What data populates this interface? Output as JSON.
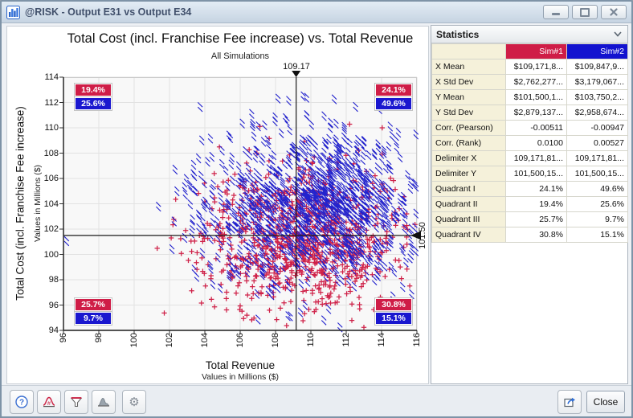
{
  "window": {
    "title": "@RISK - Output E31 vs Output E34"
  },
  "chart_data": {
    "type": "scatter",
    "title": "Total Cost (incl. Franchise Fee increase) vs. Total Revenue",
    "subtitle": "All Simulations",
    "xlabel": "Total Revenue",
    "xlabel_sub": "Values in Millions ($)",
    "ylabel": "Total Cost (incl. Franchise Fee increase)",
    "ylabel_sub": "Values in Millions ($)",
    "xlim": [
      96,
      116
    ],
    "ylim": [
      94,
      114
    ],
    "x_ticks": [
      96,
      98,
      100,
      102,
      104,
      106,
      108,
      110,
      112,
      114,
      116
    ],
    "y_ticks": [
      94,
      96,
      98,
      100,
      102,
      104,
      106,
      108,
      110,
      112,
      114
    ],
    "grid": true,
    "legend_position": "none",
    "delimiter_x": 109.17,
    "delimiter_y": 101.5,
    "delimiter_x_label": "109.17",
    "delimiter_y_label": "101.50",
    "series": [
      {
        "name": "Sim#1",
        "marker": "plus",
        "color": "#cf2148",
        "count": 1000,
        "x_mean": 109.17,
        "x_std": 2.76,
        "y_mean": 101.5,
        "y_std": 2.88,
        "quadrants": {
          "I": 24.1,
          "II": 19.4,
          "III": 25.7,
          "IV": 30.8
        },
        "seed": 7
      },
      {
        "name": "Sim#2",
        "marker": "cross",
        "color": "#2323cd",
        "count": 1000,
        "x_mean": 109.85,
        "x_std": 3.18,
        "y_mean": 103.75,
        "y_std": 2.96,
        "quadrants": {
          "I": 49.6,
          "II": 25.6,
          "III": 9.7,
          "IV": 15.1
        },
        "seed": 13
      }
    ],
    "quadrant_badges": {
      "top_left": {
        "sim1": "19.4%",
        "sim2": "25.6%"
      },
      "top_right": {
        "sim1": "24.1%",
        "sim2": "49.6%"
      },
      "bottom_left": {
        "sim1": "25.7%",
        "sim2": "9.7%"
      },
      "bottom_right": {
        "sim1": "30.8%",
        "sim2": "15.1%"
      }
    },
    "colors": {
      "sim1": "#cf1d47",
      "sim2": "#1212cf"
    }
  },
  "stats": {
    "header": "Statistics",
    "columns": [
      "",
      "Sim#1",
      "Sim#2"
    ],
    "rows": [
      {
        "label": "X Mean",
        "sim1": "$109,171,8...",
        "sim2": "$109,847,9..."
      },
      {
        "label": "X Std Dev",
        "sim1": "$2,762,277...",
        "sim2": "$3,179,067..."
      },
      {
        "label": "Y Mean",
        "sim1": "$101,500,1...",
        "sim2": "$103,750,2..."
      },
      {
        "label": "Y Std Dev",
        "sim1": "$2,879,137...",
        "sim2": "$2,958,674..."
      },
      {
        "label": "Corr. (Pearson)",
        "sim1": "-0.00511",
        "sim2": "-0.00947"
      },
      {
        "label": "Corr. (Rank)",
        "sim1": "0.0100",
        "sim2": "0.00527"
      },
      {
        "label": "Delimiter X",
        "sim1": "109,171,81...",
        "sim2": "109,171,81..."
      },
      {
        "label": "Delimiter Y",
        "sim1": "101,500,15...",
        "sim2": "101,500,15..."
      },
      {
        "label": "Quadrant I",
        "sim1": "24.1%",
        "sim2": "49.6%"
      },
      {
        "label": "Quadrant II",
        "sim1": "19.4%",
        "sim2": "25.6%"
      },
      {
        "label": "Quadrant III",
        "sim1": "25.7%",
        "sim2": "9.7%"
      },
      {
        "label": "Quadrant IV",
        "sim1": "30.8%",
        "sim2": "15.1%"
      }
    ]
  },
  "toolbar": {
    "close_label": "Close"
  }
}
